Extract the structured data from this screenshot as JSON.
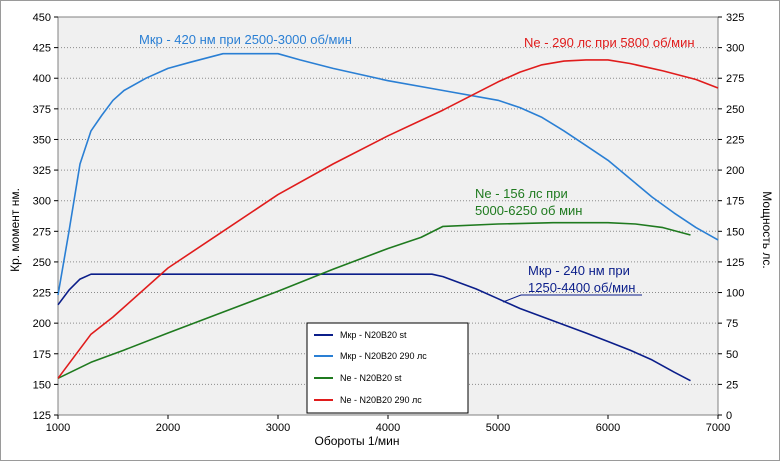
{
  "chart_data": {
    "type": "line",
    "xlabel": "Обороты 1/мин",
    "ylabel_left": "Кр. момент нм.",
    "ylabel_right": "Мощность лс.",
    "xlim": [
      1000,
      7000
    ],
    "ylim_left": [
      125,
      450
    ],
    "ylim_right": [
      0,
      325
    ],
    "x_ticks": [
      1000,
      2000,
      3000,
      4000,
      5000,
      6000,
      7000
    ],
    "y_left_ticks": [
      125,
      150,
      175,
      200,
      225,
      250,
      275,
      300,
      325,
      350,
      375,
      400,
      425,
      450
    ],
    "y_right_ticks": [
      0,
      25,
      50,
      75,
      100,
      125,
      150,
      175,
      200,
      225,
      250,
      275,
      300,
      325
    ],
    "grid": "horizontal",
    "legend_position": "bottom-center",
    "plot_background": "#f0f0f0",
    "series": [
      {
        "name": "Мкр - N20B20 st",
        "axis": "left",
        "color": "#0b1e8a",
        "points": [
          [
            1000,
            215
          ],
          [
            1100,
            227
          ],
          [
            1200,
            236
          ],
          [
            1300,
            240
          ],
          [
            2000,
            240
          ],
          [
            3000,
            240
          ],
          [
            4000,
            240
          ],
          [
            4400,
            240
          ],
          [
            4500,
            238
          ],
          [
            4800,
            228
          ],
          [
            5000,
            220
          ],
          [
            5200,
            212
          ],
          [
            5500,
            202
          ],
          [
            5800,
            192
          ],
          [
            6000,
            185
          ],
          [
            6200,
            178
          ],
          [
            6400,
            170
          ],
          [
            6600,
            160
          ],
          [
            6750,
            153
          ]
        ]
      },
      {
        "name": "Мкр - N20B20 290 лс",
        "axis": "left",
        "color": "#2a7fd4",
        "points": [
          [
            1000,
            223
          ],
          [
            1100,
            275
          ],
          [
            1200,
            330
          ],
          [
            1300,
            357
          ],
          [
            1400,
            370
          ],
          [
            1500,
            382
          ],
          [
            1600,
            390
          ],
          [
            1800,
            400
          ],
          [
            2000,
            408
          ],
          [
            2200,
            413
          ],
          [
            2500,
            420
          ],
          [
            3000,
            420
          ],
          [
            3200,
            415
          ],
          [
            3500,
            408
          ],
          [
            4000,
            398
          ],
          [
            4500,
            390
          ],
          [
            5000,
            382
          ],
          [
            5200,
            376
          ],
          [
            5400,
            368
          ],
          [
            5600,
            357
          ],
          [
            5800,
            345
          ],
          [
            6000,
            333
          ],
          [
            6200,
            318
          ],
          [
            6400,
            303
          ],
          [
            6600,
            290
          ],
          [
            6800,
            278
          ],
          [
            7000,
            268
          ]
        ]
      },
      {
        "name": "Ne  -  N20B20 st",
        "axis": "right",
        "color": "#1f7a1f",
        "points": [
          [
            1000,
            30
          ],
          [
            1300,
            43
          ],
          [
            1600,
            53
          ],
          [
            2000,
            67
          ],
          [
            2500,
            84
          ],
          [
            3000,
            101
          ],
          [
            3500,
            119
          ],
          [
            4000,
            136
          ],
          [
            4300,
            145
          ],
          [
            4500,
            154
          ],
          [
            5000,
            156
          ],
          [
            5500,
            157
          ],
          [
            6000,
            157
          ],
          [
            6250,
            156
          ],
          [
            6500,
            153
          ],
          [
            6750,
            147
          ]
        ]
      },
      {
        "name": "Ne - N20B20 290 лс",
        "axis": "right",
        "color": "#e01c1c",
        "points": [
          [
            1000,
            30
          ],
          [
            1300,
            66
          ],
          [
            1500,
            80
          ],
          [
            2000,
            120
          ],
          [
            2500,
            150
          ],
          [
            3000,
            180
          ],
          [
            3500,
            205
          ],
          [
            4000,
            228
          ],
          [
            4500,
            249
          ],
          [
            5000,
            272
          ],
          [
            5200,
            280
          ],
          [
            5400,
            286
          ],
          [
            5600,
            289
          ],
          [
            5800,
            290
          ],
          [
            6000,
            290
          ],
          [
            6200,
            287
          ],
          [
            6500,
            281
          ],
          [
            6800,
            274
          ],
          [
            7000,
            267
          ]
        ]
      }
    ],
    "annotations": [
      {
        "text": "Мкр - 420 нм при 2500-3000 об/мин",
        "color": "#2a7fd4"
      },
      {
        "text": "Ne - 290 лс при 5800 об/мин",
        "color": "#e01c1c"
      },
      {
        "text": "Ne - 156 лс при",
        "color": "#1f7a1f"
      },
      {
        "text": "5000-6250 об мин",
        "color": "#1f7a1f"
      },
      {
        "text": "Мкр - 240 нм при",
        "color": "#0b1e8a"
      },
      {
        "text": "1250-4400 об/мин",
        "color": "#0b1e8a"
      }
    ]
  }
}
